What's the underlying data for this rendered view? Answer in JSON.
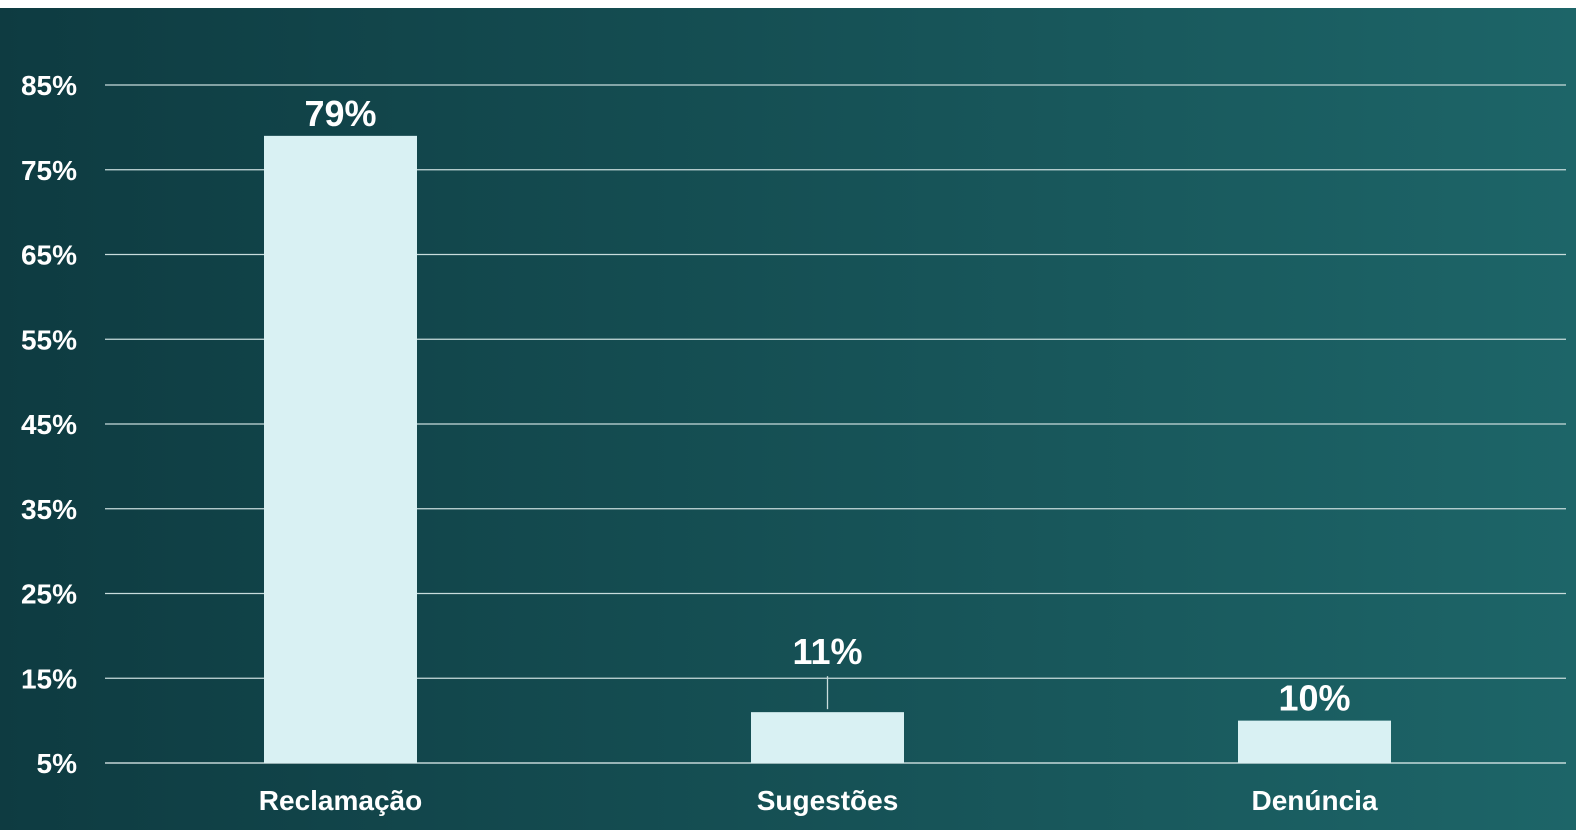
{
  "colors": {
    "bg_left": "#0e3b41",
    "bg_right": "#1d6568",
    "bar": "#d9f1f3",
    "grid": "#c8dcdc"
  },
  "chart_data": {
    "type": "bar",
    "categories": [
      "Reclamação",
      "Sugestões",
      "Denúncia"
    ],
    "values": [
      79,
      11,
      10
    ],
    "data_labels": [
      "79%",
      "11%",
      "10%"
    ],
    "y_ticks": [
      "5%",
      "15%",
      "25%",
      "35%",
      "45%",
      "55%",
      "65%",
      "75%",
      "85%"
    ],
    "ylim": [
      5,
      85
    ],
    "grid": true,
    "legend": "none"
  }
}
